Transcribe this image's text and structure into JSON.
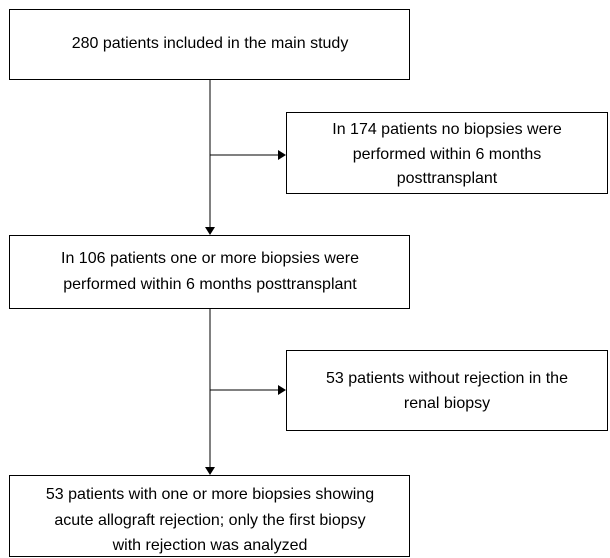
{
  "nodes": [
    {
      "lines": [
        "280 patients included in the main study"
      ]
    },
    {
      "lines": [
        "In 174 patients no biopsies were",
        "performed within 6 months",
        "posttransplant"
      ]
    },
    {
      "lines": [
        "In 106 patients one or more biopsies were",
        "performed within 6 months posttransplant"
      ]
    },
    {
      "lines": [
        "53 patients without rejection in the",
        "renal biopsy"
      ]
    },
    {
      "lines": [
        "53 patients with one or more biopsies showing",
        "acute allograft rejection; only the first biopsy",
        "with rejection was analyzed"
      ]
    }
  ]
}
